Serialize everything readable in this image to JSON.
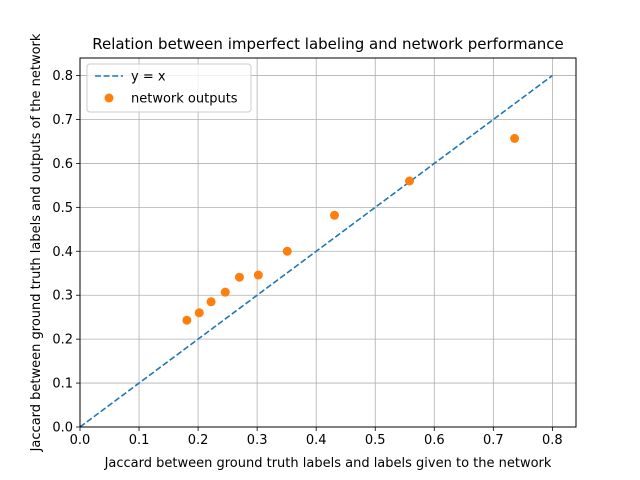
{
  "chart_data": {
    "type": "scatter",
    "title": "Relation between imperfect labeling and network performance",
    "xlabel": "Jaccard between ground truth labels and labels given to the network",
    "ylabel": "Jaccard between ground truth labels and outputs of the network",
    "xlim": [
      0,
      0.84
    ],
    "ylim": [
      0,
      0.84
    ],
    "xticks": [
      "0.0",
      "0.1",
      "0.2",
      "0.3",
      "0.4",
      "0.5",
      "0.6",
      "0.7",
      "0.8"
    ],
    "yticks": [
      "0.0",
      "0.1",
      "0.2",
      "0.3",
      "0.4",
      "0.5",
      "0.6",
      "0.7",
      "0.8"
    ],
    "grid": true,
    "legend": "top-left",
    "series": [
      {
        "name": "y = x",
        "kind": "line",
        "style": "dashed",
        "color": "#1f77b4",
        "x": [
          0,
          0.8
        ],
        "y": [
          0,
          0.8
        ]
      },
      {
        "name": "network outputs",
        "kind": "scatter",
        "color": "#ff7f0e",
        "x": [
          0.181,
          0.202,
          0.222,
          0.246,
          0.27,
          0.302,
          0.351,
          0.431,
          0.558,
          0.736
        ],
        "y": [
          0.243,
          0.26,
          0.285,
          0.307,
          0.341,
          0.346,
          0.4,
          0.482,
          0.56,
          0.657
        ]
      }
    ]
  }
}
